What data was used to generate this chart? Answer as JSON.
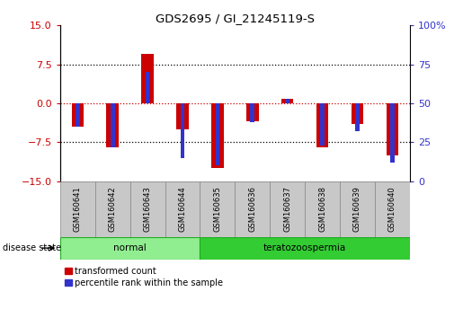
{
  "title": "GDS2695 / GI_21245119-S",
  "samples": [
    "GSM160641",
    "GSM160642",
    "GSM160643",
    "GSM160644",
    "GSM160635",
    "GSM160636",
    "GSM160637",
    "GSM160638",
    "GSM160639",
    "GSM160640"
  ],
  "red_values": [
    -4.5,
    -8.5,
    9.5,
    -5.0,
    -12.5,
    -3.5,
    0.8,
    -8.5,
    -4.0,
    -10.0
  ],
  "blue_values_pct": [
    35,
    22,
    70,
    15,
    10,
    38,
    53,
    23,
    32,
    12
  ],
  "ylim_left": [
    -15,
    15
  ],
  "ylim_right": [
    0,
    100
  ],
  "yticks_left": [
    -15,
    -7.5,
    0,
    7.5,
    15
  ],
  "yticks_right": [
    0,
    25,
    50,
    75,
    100
  ],
  "groups": [
    {
      "label": "normal",
      "start": 0,
      "end": 4,
      "color": "#90ee90",
      "border": "#22aa22"
    },
    {
      "label": "teratozoospermia",
      "start": 4,
      "end": 10,
      "color": "#33cc33",
      "border": "#22aa22"
    }
  ],
  "disease_state_label": "disease state",
  "legend_red_label": "transformed count",
  "legend_blue_label": "percentile rank within the sample",
  "red_color": "#cc0000",
  "blue_color": "#3333cc",
  "red_bar_width": 0.35,
  "blue_bar_width": 0.12,
  "dotted_line_color": "#000000",
  "red_dotted_color": "#cc0000",
  "background_color": "#ffffff",
  "tick_label_color_left": "#cc0000",
  "tick_label_color_right": "#3333cc",
  "sample_box_color": "#c8c8c8",
  "sample_box_edge": "#888888"
}
